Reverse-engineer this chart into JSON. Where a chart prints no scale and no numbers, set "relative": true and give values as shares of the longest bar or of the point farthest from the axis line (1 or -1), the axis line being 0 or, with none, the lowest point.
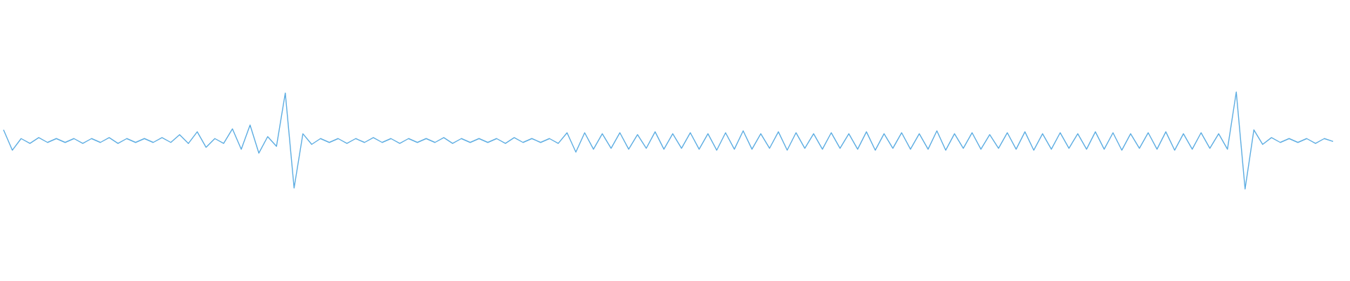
{
  "chart_data": {
    "type": "line",
    "relative": true,
    "marker": "none",
    "line_style": "solid",
    "categories": [
      null,
      null,
      null,
      null,
      null,
      null,
      null,
      null,
      null,
      null,
      null,
      null,
      null,
      null,
      null,
      null,
      null,
      null,
      null,
      null,
      null,
      null,
      null,
      null,
      null,
      null,
      null,
      null,
      null,
      null,
      null,
      null,
      null,
      null,
      null,
      null,
      null,
      null,
      null,
      null,
      null,
      null,
      null,
      null,
      null,
      null,
      null,
      null,
      null,
      null,
      null,
      null,
      null,
      null,
      null,
      null,
      null,
      null,
      null,
      null,
      null,
      null,
      null,
      null,
      null,
      null,
      null,
      null,
      null,
      null,
      null,
      null,
      null,
      null,
      null,
      null,
      null,
      null,
      null,
      null,
      null,
      null,
      null,
      null,
      null,
      null,
      null,
      null,
      null,
      null,
      null,
      null,
      null,
      null,
      null,
      null,
      null,
      null,
      null,
      null,
      null,
      null,
      null,
      null,
      null,
      null,
      null,
      null,
      null,
      null,
      null,
      null,
      null,
      null,
      null,
      null,
      null,
      null,
      null,
      null,
      null,
      null,
      null,
      null,
      null,
      null,
      null,
      null,
      null,
      null,
      null,
      null,
      null,
      null,
      null,
      null,
      null,
      null,
      null,
      null,
      null,
      null,
      null,
      null,
      null,
      null,
      null,
      null,
      null,
      null,
      null,
      null
    ],
    "series": [
      {
        "color": "#5dade2",
        "values": [
          0.61,
          0.4,
          0.52,
          0.47,
          0.53,
          0.48,
          0.52,
          0.48,
          0.52,
          0.47,
          0.52,
          0.48,
          0.53,
          0.47,
          0.52,
          0.48,
          0.52,
          0.48,
          0.53,
          0.48,
          0.56,
          0.47,
          0.59,
          0.43,
          0.52,
          0.47,
          0.62,
          0.41,
          0.66,
          0.37,
          0.54,
          0.44,
          0.99,
          0.01,
          0.57,
          0.46,
          0.52,
          0.48,
          0.52,
          0.47,
          0.52,
          0.48,
          0.53,
          0.48,
          0.52,
          0.47,
          0.52,
          0.48,
          0.52,
          0.48,
          0.53,
          0.47,
          0.52,
          0.48,
          0.52,
          0.48,
          0.52,
          0.47,
          0.53,
          0.48,
          0.52,
          0.48,
          0.52,
          0.47,
          0.58,
          0.38,
          0.58,
          0.41,
          0.57,
          0.42,
          0.58,
          0.41,
          0.56,
          0.42,
          0.59,
          0.41,
          0.57,
          0.42,
          0.58,
          0.41,
          0.57,
          0.4,
          0.58,
          0.41,
          0.6,
          0.41,
          0.57,
          0.42,
          0.59,
          0.4,
          0.58,
          0.42,
          0.57,
          0.41,
          0.58,
          0.42,
          0.57,
          0.41,
          0.59,
          0.4,
          0.57,
          0.42,
          0.58,
          0.41,
          0.57,
          0.41,
          0.6,
          0.4,
          0.57,
          0.42,
          0.58,
          0.41,
          0.56,
          0.42,
          0.58,
          0.41,
          0.59,
          0.4,
          0.57,
          0.41,
          0.58,
          0.42,
          0.57,
          0.41,
          0.59,
          0.41,
          0.58,
          0.4,
          0.57,
          0.42,
          0.58,
          0.41,
          0.59,
          0.4,
          0.57,
          0.41,
          0.58,
          0.42,
          0.57,
          0.41,
          1,
          0,
          0.61,
          0.46,
          0.53,
          0.48,
          0.52,
          0.48,
          0.52,
          0.47,
          0.52,
          0.49
        ]
      }
    ]
  }
}
